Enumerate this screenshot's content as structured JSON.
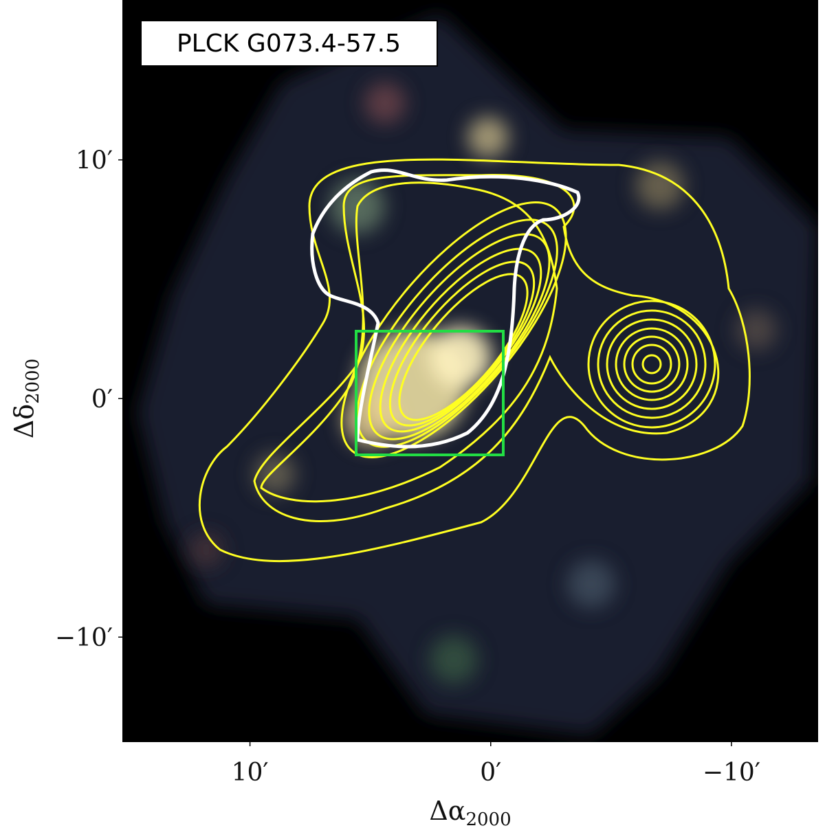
{
  "chart_data": {
    "type": "image",
    "annotation": "PLCK G073.4-57.5",
    "x_label": {
      "symbol": "Δα",
      "subscript": "2000"
    },
    "y_label": {
      "symbol": "Δδ",
      "subscript": "2000"
    },
    "xlim": [
      15.3,
      -13.6
    ],
    "ylim": [
      -14.4,
      16.7
    ],
    "xticks": [
      {
        "value": 10,
        "label": "10′"
      },
      {
        "value": 0,
        "label": "0′"
      },
      {
        "value": -10,
        "label": "−10′"
      }
    ],
    "yticks": [
      {
        "value": 10,
        "label": "10′"
      },
      {
        "value": 0,
        "label": "0′"
      },
      {
        "value": -10,
        "label": "−10′"
      }
    ]
  }
}
